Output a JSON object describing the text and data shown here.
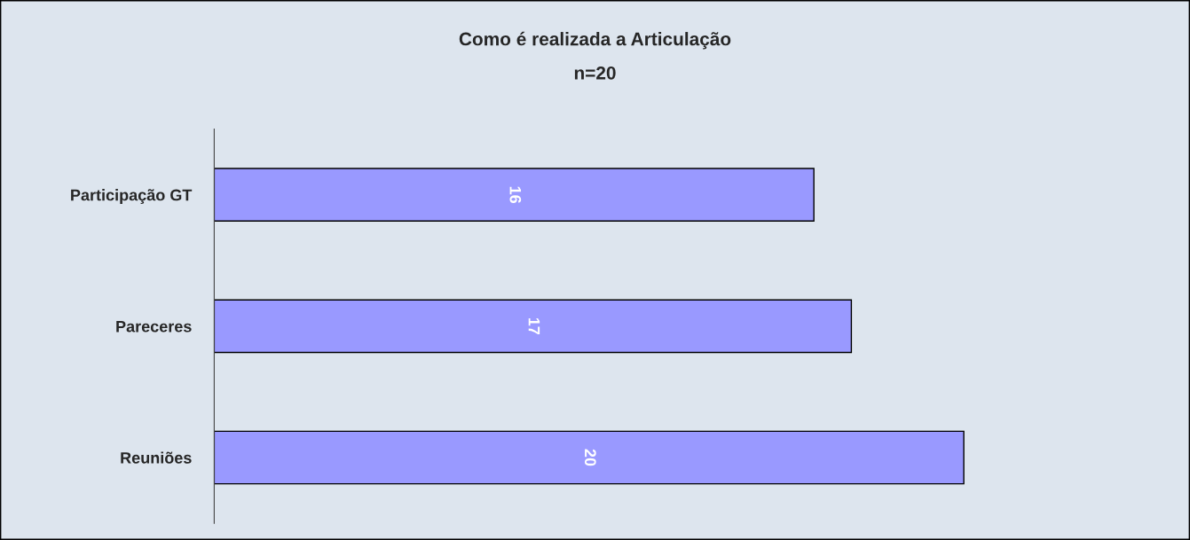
{
  "chart_data": {
    "type": "bar",
    "orientation": "horizontal",
    "title": "Como é realizada a Articulação",
    "subtitle": "n=20",
    "categories": [
      "Participação GT",
      "Pareceres",
      "Reuniões"
    ],
    "values": [
      16,
      17,
      20
    ],
    "color": "#9999ff",
    "data_labels": true,
    "grid": false,
    "legend": false,
    "tick_labels": "y"
  }
}
